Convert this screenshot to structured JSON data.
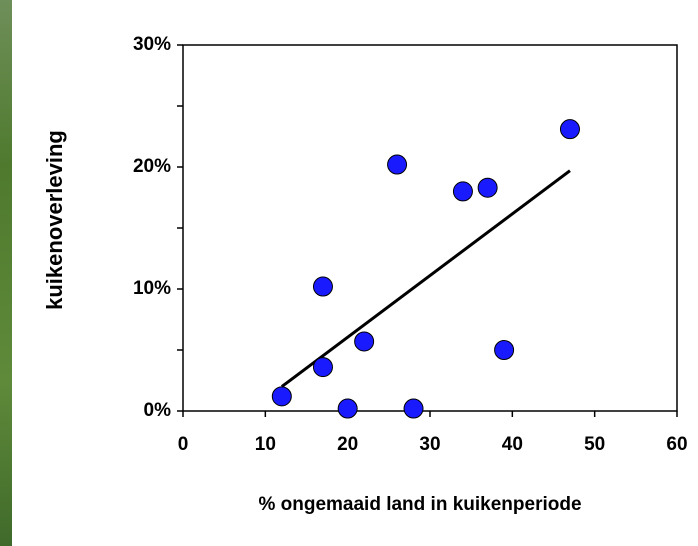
{
  "chart_data": {
    "type": "scatter",
    "x_label": "% ongemaaid land in kuikenperiode",
    "y_label": "kuikenoverleving",
    "x": [
      12,
      20,
      28,
      17,
      17,
      22,
      26,
      34,
      37,
      39,
      47
    ],
    "values": [
      1.2,
      0.2,
      0.2,
      3.6,
      10.2,
      5.7,
      20.2,
      18.0,
      18.3,
      5.0,
      23.1
    ],
    "color": "#1a1aff",
    "trendline": {
      "x": [
        12,
        47
      ],
      "y": [
        2.0,
        19.7
      ],
      "color": "#000000"
    },
    "xlim": [
      0,
      60
    ],
    "xticks": [
      0,
      10,
      20,
      30,
      40,
      50,
      60
    ],
    "ylim": [
      0,
      30
    ],
    "yticks": [
      {
        "value": 0,
        "label": "0%"
      },
      {
        "value": 10,
        "label": "10%"
      },
      {
        "value": 20,
        "label": "20%"
      },
      {
        "value": 30,
        "label": "30%"
      }
    ],
    "yminor_ticks": [
      5,
      15,
      25
    ]
  }
}
